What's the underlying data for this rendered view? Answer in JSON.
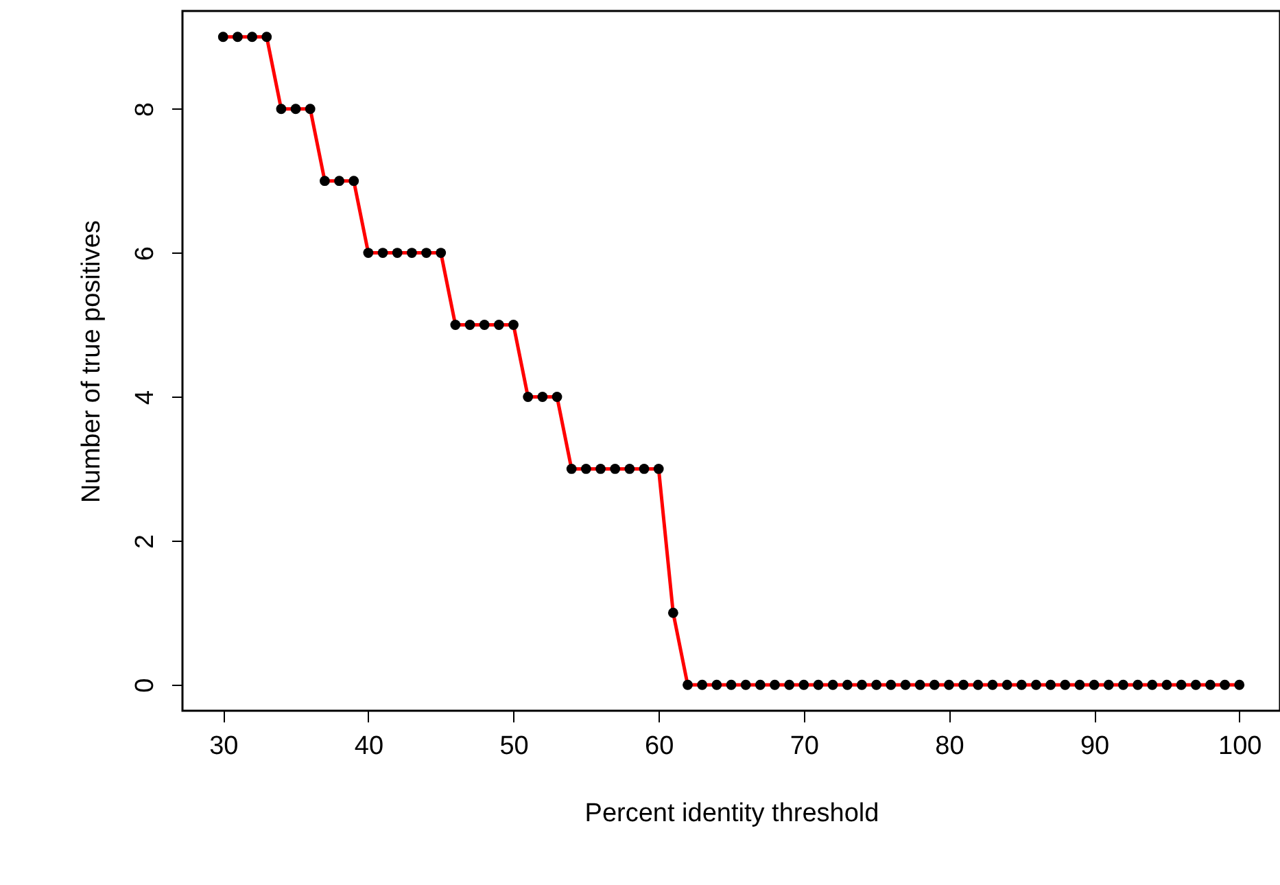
{
  "chart_data": {
    "type": "line",
    "xlabel": "Percent identity threshold",
    "ylabel": "Number of true positives",
    "x": [
      30,
      31,
      32,
      33,
      34,
      35,
      36,
      37,
      38,
      39,
      40,
      41,
      42,
      43,
      44,
      45,
      46,
      47,
      48,
      49,
      50,
      51,
      52,
      53,
      54,
      55,
      56,
      57,
      58,
      59,
      60,
      61,
      62,
      63,
      64,
      65,
      66,
      67,
      68,
      69,
      70,
      71,
      72,
      73,
      74,
      75,
      76,
      77,
      78,
      79,
      80,
      81,
      82,
      83,
      84,
      85,
      86,
      87,
      88,
      89,
      90,
      91,
      92,
      93,
      94,
      95,
      96,
      97,
      98,
      99,
      100
    ],
    "series": [
      {
        "color": "#ff0000",
        "marker": "none",
        "values": [
          9,
          9,
          9,
          9,
          8,
          8,
          8,
          7,
          7,
          7,
          6,
          6,
          6,
          6,
          6,
          6,
          5,
          5,
          5,
          5,
          5,
          4,
          4,
          4,
          3,
          3,
          3,
          3,
          3,
          3,
          3,
          1,
          0,
          0,
          0,
          0,
          0,
          0,
          0,
          0,
          0,
          0,
          0,
          0,
          0,
          0,
          0,
          0,
          0,
          0,
          0,
          0,
          0,
          0,
          0,
          0,
          0,
          0,
          0,
          0,
          0,
          0,
          0,
          0,
          0,
          0,
          0,
          0,
          0,
          0,
          0
        ]
      },
      {
        "type": "scatter",
        "color": "#000000",
        "marker": "circle",
        "values": [
          9,
          9,
          9,
          9,
          8,
          8,
          8,
          7,
          7,
          7,
          6,
          6,
          6,
          6,
          6,
          6,
          5,
          5,
          5,
          5,
          5,
          4,
          4,
          4,
          3,
          3,
          3,
          3,
          3,
          3,
          3,
          1,
          0,
          0,
          0,
          0,
          0,
          0,
          0,
          0,
          0,
          0,
          0,
          0,
          0,
          0,
          0,
          0,
          0,
          0,
          0,
          0,
          0,
          0,
          0,
          0,
          0,
          0,
          0,
          0,
          0,
          0,
          0,
          0,
          0,
          0,
          0,
          0,
          0,
          0,
          0
        ]
      }
    ],
    "xlim": [
      27.2,
      102.8
    ],
    "ylim": [
      -0.36,
      9.36
    ],
    "xticks": [
      30,
      40,
      50,
      60,
      70,
      80,
      90,
      100
    ],
    "yticks": [
      0,
      2,
      4,
      6,
      8
    ],
    "grid": false
  }
}
